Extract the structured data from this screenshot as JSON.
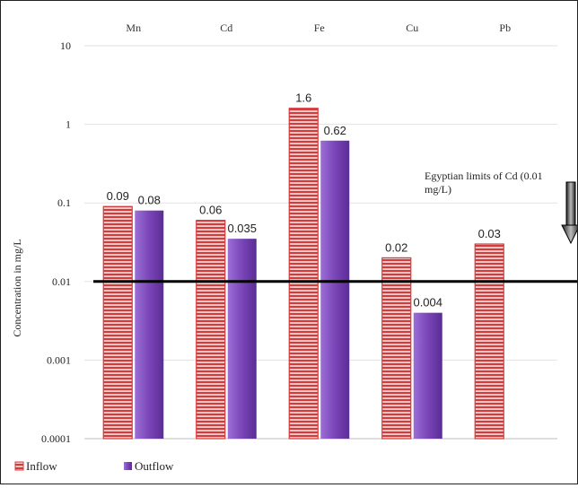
{
  "chart_data": {
    "type": "bar",
    "yscale": "log",
    "ylim": [
      0.0001,
      10
    ],
    "ylabel": "Concentration in mg/L",
    "yticks": [
      "10",
      "1",
      "0.1",
      "0.01",
      "0.001",
      "0.0001"
    ],
    "ytick_values": [
      10,
      1,
      0.1,
      0.01,
      0.001,
      0.0001
    ],
    "categories": [
      "Mn",
      "Cd",
      "Fe",
      "Cu",
      "Pb"
    ],
    "series": [
      {
        "name": "Inflow",
        "values": [
          0.09,
          0.06,
          1.6,
          0.02,
          0.03
        ],
        "labels": [
          "0.09",
          "0.06",
          "1.6",
          "0.02",
          "0.03"
        ],
        "color": "#d63a3a",
        "fill": "#f4a6a6",
        "pattern": "horizontal-stripes"
      },
      {
        "name": "Outflow",
        "values": [
          0.08,
          0.035,
          0.62,
          0.004,
          null
        ],
        "labels": [
          "0.08",
          "0.035",
          "0.62",
          "0.004",
          ""
        ],
        "color": "#7a45b8"
      }
    ],
    "reference_line": {
      "value": 0.01,
      "label_line1": "Egyptian limits of Cd (0.01",
      "label_line2": "mg/L)"
    },
    "legend": "bottom-left",
    "grid": true
  }
}
